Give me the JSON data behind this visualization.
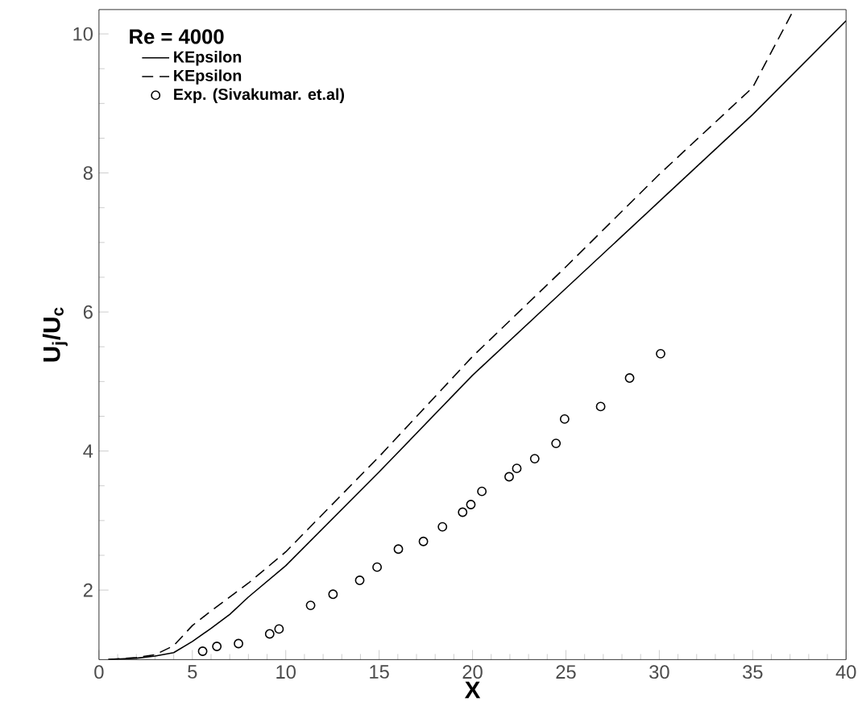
{
  "chart_data": {
    "type": "line",
    "xlabel": "X",
    "ylabel": "**U$_{j}$/U$_{c}$**",
    "legend_title": "Re = 4000",
    "xlim": [
      0,
      40
    ],
    "ylim": [
      1,
      10.35
    ],
    "xticks": [
      0,
      5,
      10,
      15,
      20,
      25,
      30,
      35,
      40
    ],
    "yticks": [
      2,
      4,
      6,
      8,
      10
    ],
    "grid": false,
    "legend": "top left",
    "series": [
      {
        "name": "KEpsilon",
        "line_style": "solid",
        "color": "#000000",
        "x": [
          0.5,
          2,
          3,
          4,
          5,
          6,
          7,
          8,
          10,
          15,
          20,
          25,
          30,
          35,
          40
        ],
        "values": [
          1.0,
          1.02,
          1.05,
          1.1,
          1.26,
          1.45,
          1.65,
          1.9,
          2.35,
          3.7,
          5.09,
          6.34,
          7.59,
          8.84,
          10.19
        ]
      },
      {
        "name": "KEpsilon",
        "line_style": "dashed",
        "color": "#000000",
        "x": [
          0.5,
          2,
          3,
          4,
          5,
          6,
          8,
          10,
          15,
          20,
          25,
          30,
          35,
          37.2
        ],
        "values": [
          1.0,
          1.03,
          1.07,
          1.2,
          1.49,
          1.7,
          2.1,
          2.55,
          3.92,
          5.36,
          6.65,
          7.98,
          9.23,
          10.35
        ]
      },
      {
        "name": "Exp. (Sivakumar. et.al)",
        "type": "scatter",
        "marker": "circle",
        "color": "#000000",
        "x": [
          5.55,
          6.31,
          7.47,
          9.14,
          9.64,
          11.33,
          12.53,
          13.96,
          14.89,
          16.03,
          17.37,
          18.39,
          19.47,
          19.91,
          20.5,
          21.96,
          22.37,
          23.33,
          24.47,
          24.93,
          26.86,
          28.41,
          30.07
        ],
        "values": [
          1.12,
          1.19,
          1.23,
          1.37,
          1.44,
          1.78,
          1.94,
          2.14,
          2.33,
          2.59,
          2.7,
          2.91,
          3.12,
          3.23,
          3.42,
          3.63,
          3.75,
          3.89,
          4.11,
          4.46,
          4.64,
          5.05,
          5.4
        ]
      }
    ]
  }
}
